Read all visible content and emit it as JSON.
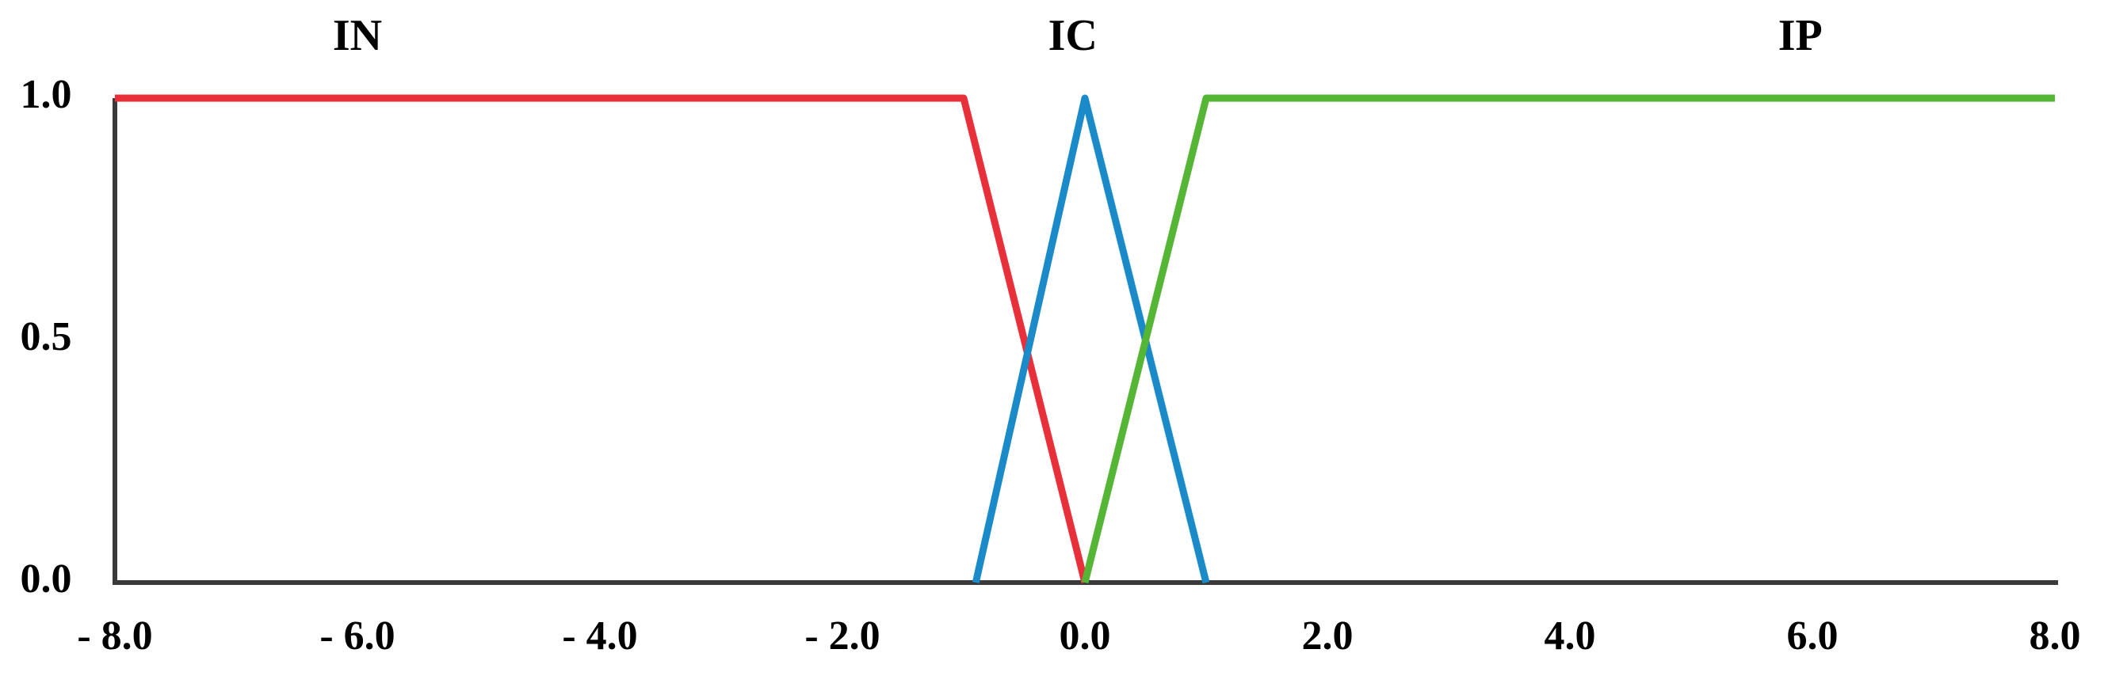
{
  "chart_data": {
    "type": "line",
    "title": "",
    "xlabel": "",
    "ylabel": "",
    "xlim": [
      -8.0,
      8.0
    ],
    "ylim": [
      0.0,
      1.0
    ],
    "grid": false,
    "x_ticks": [
      {
        "value": -8.0,
        "label": "- 8.0"
      },
      {
        "value": -6.0,
        "label": "- 6.0"
      },
      {
        "value": -4.0,
        "label": "- 4.0"
      },
      {
        "value": -2.0,
        "label": "- 2.0"
      },
      {
        "value": 0.0,
        "label": "0.0"
      },
      {
        "value": 2.0,
        "label": "2.0"
      },
      {
        "value": 4.0,
        "label": "4.0"
      },
      {
        "value": 6.0,
        "label": "6.0"
      },
      {
        "value": 8.0,
        "label": "8.0"
      }
    ],
    "y_ticks": [
      {
        "value": 0.0,
        "label": "0.0"
      },
      {
        "value": 0.5,
        "label": "0.5"
      },
      {
        "value": 1.0,
        "label": "1.0"
      }
    ],
    "series": [
      {
        "name": "IN",
        "color": "#e8303a",
        "label_x": -6.0,
        "points": [
          [
            -8.0,
            1.0
          ],
          [
            -1.0,
            1.0
          ],
          [
            0.0,
            0.0
          ]
        ]
      },
      {
        "name": "IC",
        "color": "#1a8ac8",
        "label_x": -0.1,
        "points": [
          [
            -0.9,
            0.0
          ],
          [
            0.0,
            1.0
          ],
          [
            1.0,
            0.0
          ]
        ]
      },
      {
        "name": "IP",
        "color": "#55b535",
        "label_x": 5.9,
        "points": [
          [
            0.0,
            0.0
          ],
          [
            1.0,
            1.0
          ],
          [
            8.0,
            1.0
          ]
        ]
      }
    ]
  }
}
